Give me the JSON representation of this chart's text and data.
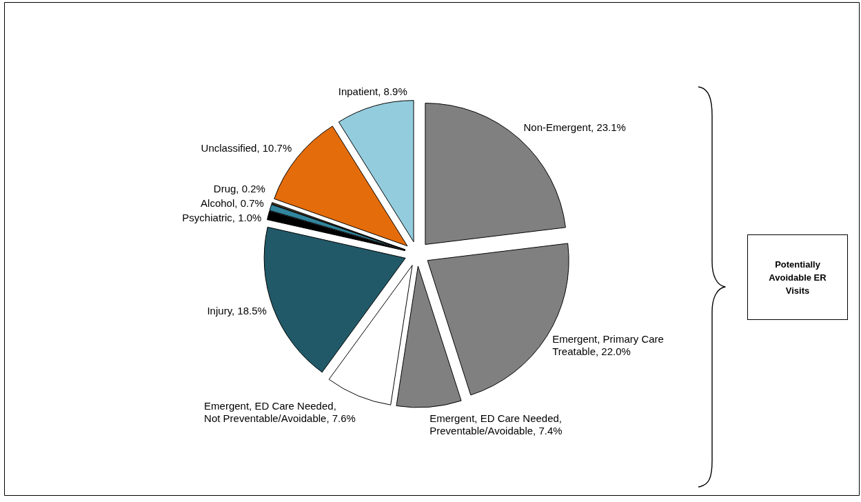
{
  "chart_data": {
    "type": "pie",
    "categories": [
      "Non-Emergent",
      "Emergent, Primary Care Treatable",
      "Emergent, ED Care Needed, Preventable/Avoidable",
      "Emergent, ED Care Needed, Not Preventable/Avoidable",
      "Injury",
      "Psychiatric",
      "Alcohol",
      "Drug",
      "Unclassified",
      "Inpatient"
    ],
    "values": [
      23.1,
      22.0,
      7.4,
      7.6,
      18.5,
      1.0,
      0.7,
      0.2,
      10.7,
      8.9
    ],
    "value_labels": [
      "23.1%",
      "22.0%",
      "7.4%",
      "7.6%",
      "18.5%",
      "1.0%",
      "0.7%",
      "0.2%",
      "10.7%",
      "8.9%"
    ],
    "colors": [
      "#808080",
      "#808080",
      "#808080",
      "#ffffff",
      "#215968",
      "#000000",
      "#31859c",
      "#4b3a26",
      "#e46c0a",
      "#93cddd"
    ],
    "annotations": [
      "Potentially Avoidable ER Visits"
    ]
  }
}
